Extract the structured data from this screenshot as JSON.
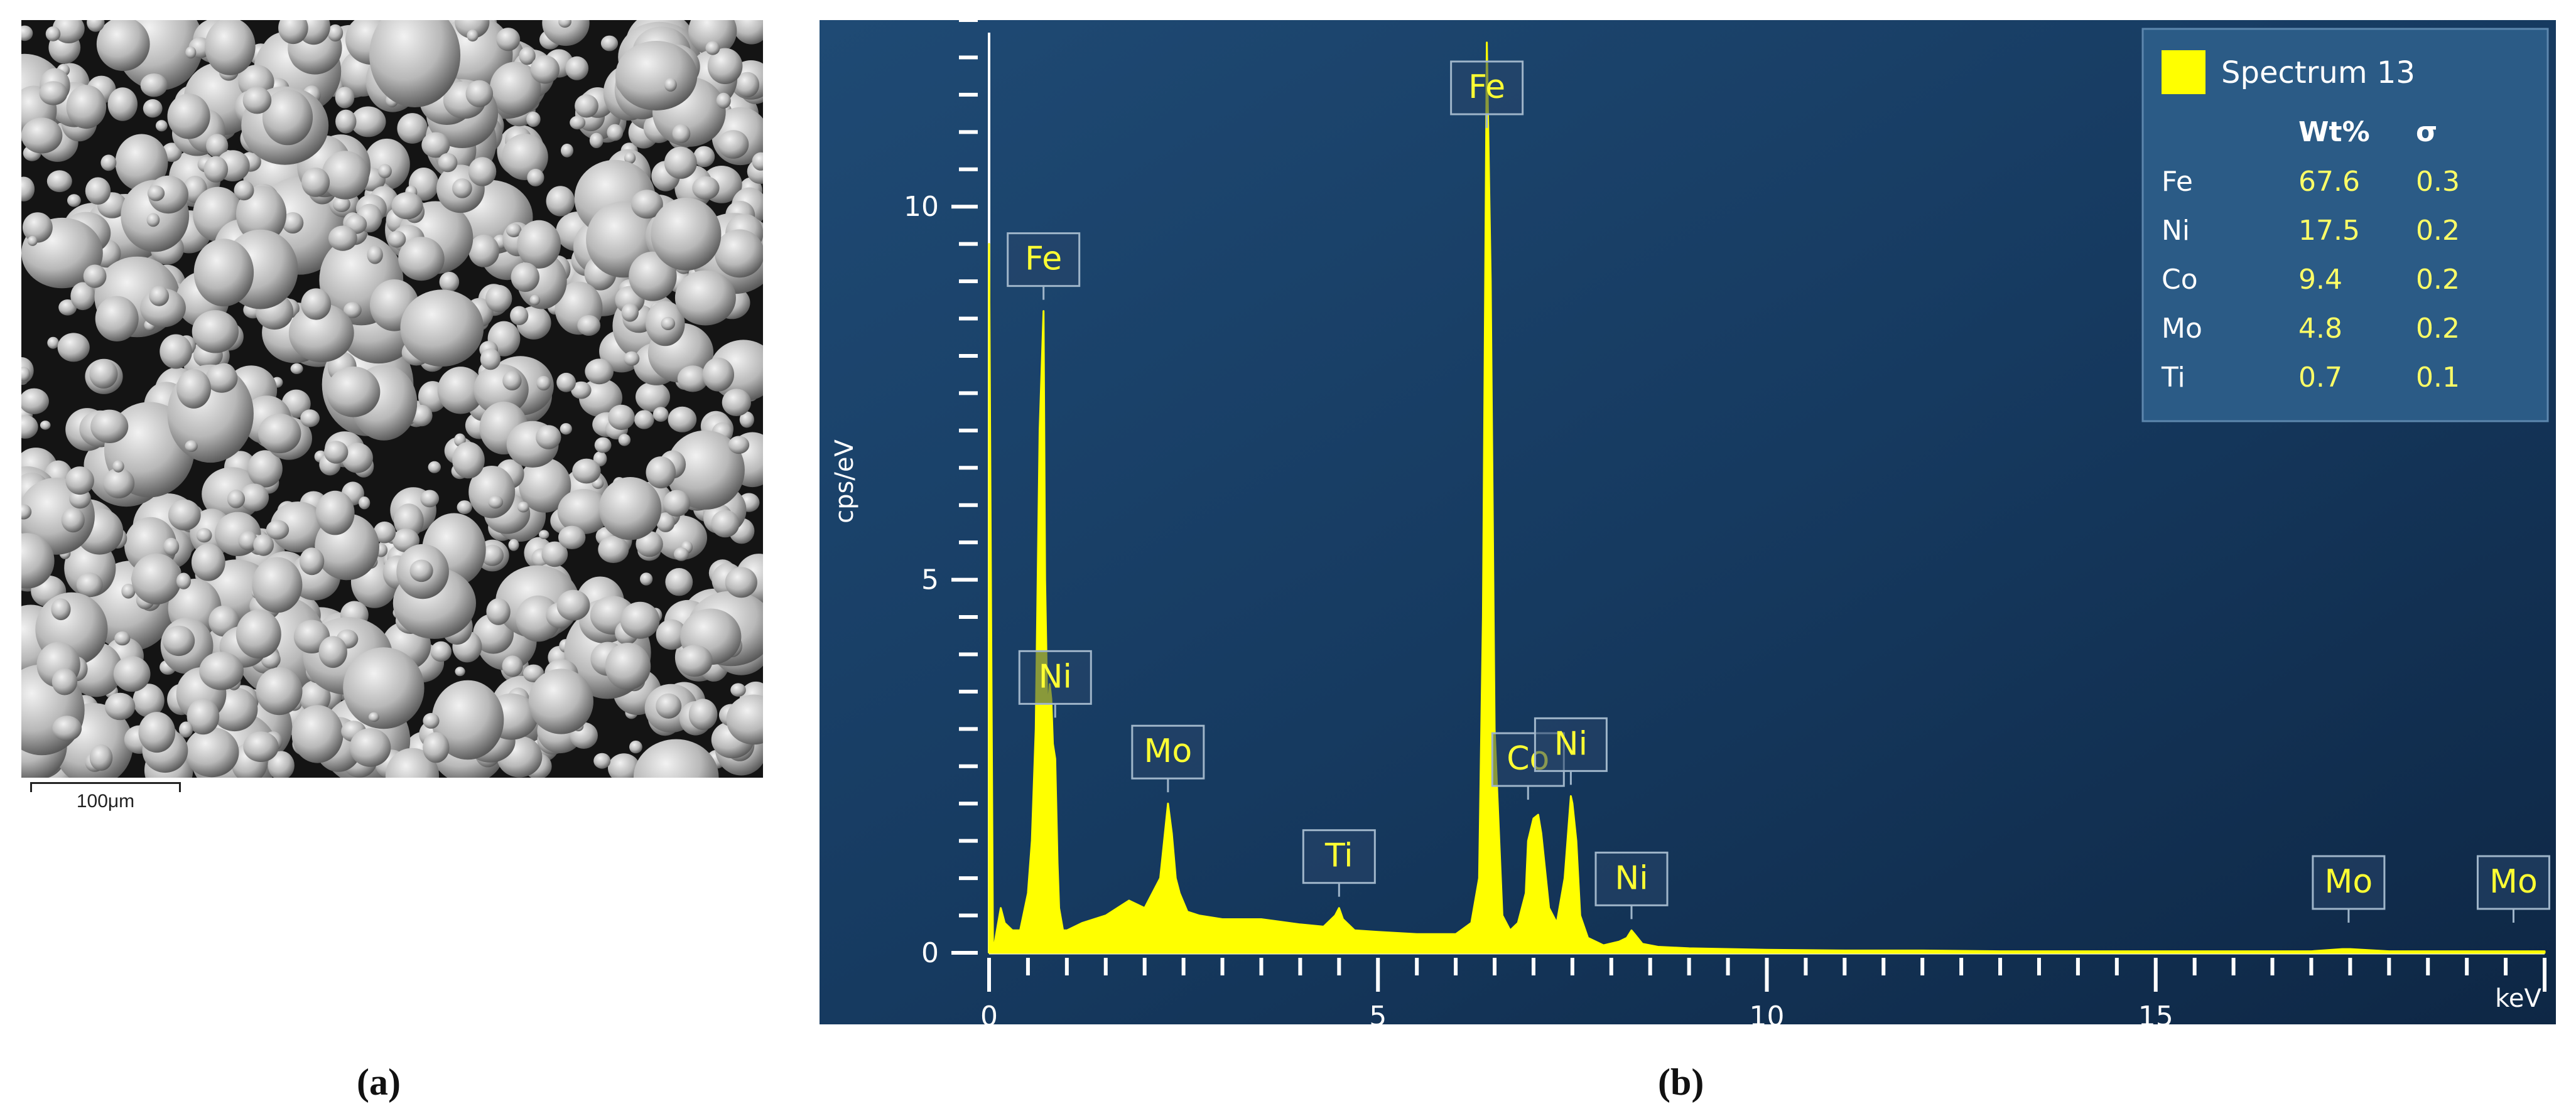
{
  "figure": {
    "panel_a_label": "(a)",
    "panel_b_label": "(b)"
  },
  "sem": {
    "scale_bar_label": "100μm"
  },
  "chart_data": {
    "type": "line",
    "title": "",
    "xlabel": "keV",
    "ylabel": "cps/eV",
    "xlim": [
      0,
      20
    ],
    "ylim": [
      0,
      12.5
    ],
    "x_ticks": [
      0,
      5,
      10,
      15
    ],
    "y_ticks": [
      0,
      5,
      10
    ],
    "grid": false,
    "colors": {
      "background": "#153457",
      "spectrum": "#ffff00",
      "axis": "#ffffff",
      "peak_label": "#ffff33"
    },
    "series": [
      {
        "name": "Spectrum 13",
        "x": [
          0.0,
          0.05,
          0.1,
          0.15,
          0.2,
          0.3,
          0.4,
          0.5,
          0.55,
          0.6,
          0.65,
          0.7,
          0.72,
          0.75,
          0.78,
          0.8,
          0.82,
          0.85,
          0.88,
          0.9,
          0.95,
          1.0,
          1.2,
          1.5,
          1.8,
          2.0,
          2.2,
          2.25,
          2.3,
          2.35,
          2.4,
          2.45,
          2.55,
          2.7,
          3.0,
          3.5,
          4.0,
          4.3,
          4.45,
          4.5,
          4.55,
          4.7,
          5.0,
          5.5,
          6.0,
          6.2,
          6.3,
          6.35,
          6.4,
          6.45,
          6.5,
          6.6,
          6.7,
          6.8,
          6.9,
          6.93,
          7.0,
          7.06,
          7.1,
          7.2,
          7.3,
          7.4,
          7.48,
          7.5,
          7.55,
          7.6,
          7.7,
          7.9,
          8.1,
          8.2,
          8.26,
          8.3,
          8.4,
          8.6,
          9.0,
          10.0,
          11.0,
          12.0,
          13.0,
          14.0,
          15.0,
          16.0,
          17.0,
          17.4,
          17.5,
          18.0,
          19.0,
          20.0
        ],
        "values": [
          9.5,
          0.0,
          0.3,
          0.6,
          0.4,
          0.3,
          0.3,
          0.8,
          1.5,
          3.0,
          7.0,
          8.6,
          5.0,
          3.2,
          3.6,
          3.4,
          2.8,
          2.6,
          1.2,
          0.6,
          0.3,
          0.3,
          0.4,
          0.5,
          0.7,
          0.6,
          1.0,
          1.5,
          2.0,
          1.6,
          1.0,
          0.8,
          0.55,
          0.5,
          0.45,
          0.45,
          0.38,
          0.35,
          0.5,
          0.6,
          0.45,
          0.3,
          0.28,
          0.25,
          0.25,
          0.4,
          1.0,
          4.5,
          12.2,
          9.0,
          3.0,
          0.5,
          0.3,
          0.4,
          0.8,
          1.5,
          1.8,
          1.85,
          1.6,
          0.6,
          0.4,
          1.0,
          2.1,
          2.0,
          1.5,
          0.5,
          0.2,
          0.1,
          0.15,
          0.2,
          0.3,
          0.25,
          0.12,
          0.08,
          0.06,
          0.04,
          0.03,
          0.03,
          0.02,
          0.02,
          0.02,
          0.02,
          0.02,
          0.05,
          0.05,
          0.02,
          0.02,
          0.02
        ]
      }
    ],
    "peak_labels": [
      {
        "label": "Fe",
        "x": 6.4,
        "y": 12.2
      },
      {
        "label": "Fe",
        "x": 0.7,
        "y": 8.6
      },
      {
        "label": "Ni",
        "x": 0.85,
        "y": 3.0
      },
      {
        "label": "Mo",
        "x": 2.3,
        "y": 2.0
      },
      {
        "label": "Ti",
        "x": 4.5,
        "y": 0.6
      },
      {
        "label": "Co",
        "x": 6.93,
        "y": 1.9
      },
      {
        "label": "Ni",
        "x": 7.48,
        "y": 2.1
      },
      {
        "label": "Ni",
        "x": 8.26,
        "y": 0.3
      },
      {
        "label": "Mo",
        "x": 17.48,
        "y": 0.05
      },
      {
        "label": "Mo",
        "x": 19.6,
        "y": 0.05
      }
    ],
    "legend": {
      "position": "top-right",
      "title": "Spectrum 13",
      "header": [
        "",
        "Wt%",
        "σ"
      ],
      "rows": [
        [
          "Fe",
          "67.6",
          "0.3"
        ],
        [
          "Ni",
          "17.5",
          "0.2"
        ],
        [
          "Co",
          "9.4",
          "0.2"
        ],
        [
          "Mo",
          "4.8",
          "0.2"
        ],
        [
          "Ti",
          "0.7",
          "0.1"
        ]
      ]
    }
  }
}
